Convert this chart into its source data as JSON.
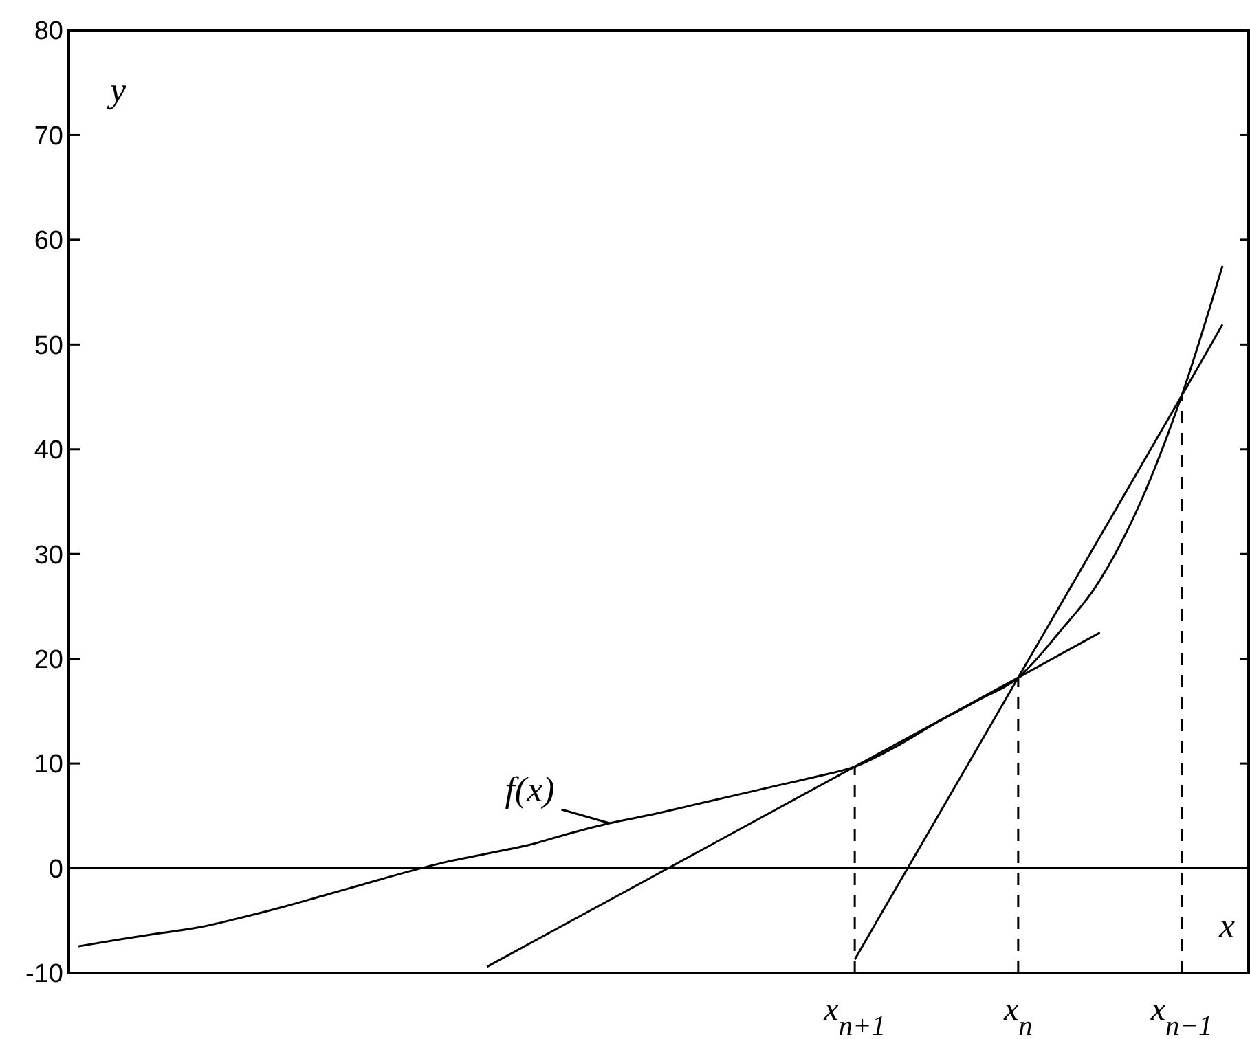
{
  "chart_data": {
    "type": "line",
    "xlabel": "x",
    "ylabel": "y",
    "categories": [
      null,
      null,
      null,
      null,
      null,
      null,
      null,
      null,
      null,
      null,
      null,
      null,
      null,
      null,
      null,
      null,
      null,
      null,
      null,
      "x$_{n+1}$",
      null,
      null,
      null,
      "x$_{n}$",
      null,
      null,
      null,
      "x$_{n−1}$",
      null
    ],
    "ylim": [
      -10,
      80
    ],
    "yticks": [
      -10,
      0,
      10,
      20,
      30,
      40,
      50,
      60,
      70,
      80
    ],
    "grid": false,
    "marker": "none",
    "ref_lines": [
      {
        "axis": "y",
        "value": 0,
        "color": "#000000",
        "line_style": "solid"
      },
      {
        "axis": "x",
        "value": "x$_{n+1}$",
        "color": "#000000",
        "line_style": "dashed"
      },
      {
        "axis": "x",
        "value": "x$_{n}$",
        "color": "#000000",
        "line_style": "dashed"
      },
      {
        "axis": "x",
        "value": "x$_{n−1}$",
        "color": "#000000",
        "line_style": "dashed"
      }
    ],
    "series": [
      {
        "name": "f(x)",
        "color": "#000000",
        "line_style": "solid",
        "values": [
          -7.45,
          -6.8,
          -6.2,
          -5.6,
          -4.7,
          -3.7,
          -2.6,
          -1.5,
          -0.4,
          0.6,
          1.4,
          2.2,
          3.3,
          4.3,
          5.1,
          6.0,
          6.9,
          7.8,
          8.7,
          9.7,
          11.6,
          13.9,
          16.0,
          18.2,
          22.5,
          27.5,
          35,
          45.1,
          57.5
        ]
      },
      {
        "color": "#000000",
        "line_style": "solid",
        "values": [
          null,
          null,
          null,
          null,
          null,
          null,
          null,
          null,
          null,
          null,
          null,
          null,
          null,
          null,
          null,
          null,
          null,
          null,
          null,
          -8.7,
          null,
          null,
          null,
          18.2,
          null,
          null,
          null,
          45.1,
          51.9
        ]
      },
      {
        "color": "#000000",
        "line_style": "solid",
        "values": [
          null,
          null,
          null,
          null,
          null,
          null,
          null,
          null,
          null,
          null,
          -9.4,
          null,
          null,
          null,
          null,
          null,
          null,
          null,
          null,
          9.7,
          null,
          null,
          null,
          18.2,
          null,
          22.5,
          null,
          null,
          null
        ]
      }
    ]
  }
}
